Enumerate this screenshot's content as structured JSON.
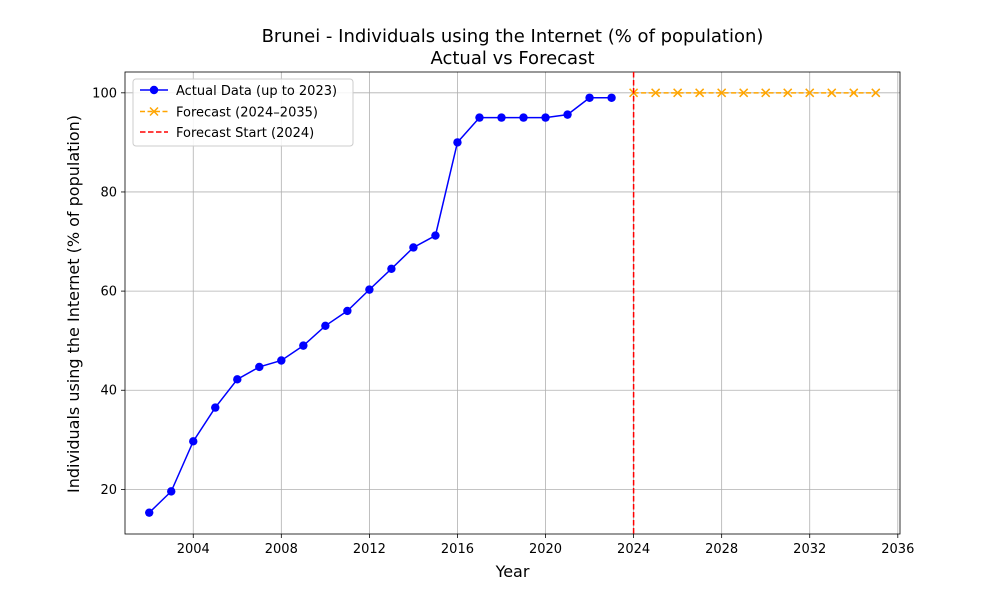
{
  "chart_data": {
    "type": "line",
    "title": "Brunei - Individuals using the Internet (% of population)",
    "subtitle": "Actual vs Forecast",
    "xlabel": "Year",
    "ylabel": "Individuals using the Internet (% of population)",
    "xlim": [
      2000.9,
      2036.1
    ],
    "ylim": [
      11.0,
      104.2
    ],
    "x_ticks": [
      2004,
      2008,
      2012,
      2016,
      2020,
      2024,
      2028,
      2032,
      2036
    ],
    "y_ticks": [
      20,
      40,
      60,
      80,
      100
    ],
    "grid": true,
    "legend_position": "top-left",
    "series": [
      {
        "name": "Actual Data (up to 2023)",
        "color": "#0000ff",
        "marker": "circle",
        "line_style": "solid",
        "x": [
          2002,
          2003,
          2004,
          2005,
          2006,
          2007,
          2008,
          2009,
          2010,
          2011,
          2012,
          2013,
          2014,
          2015,
          2016,
          2017,
          2018,
          2019,
          2020,
          2021,
          2022,
          2023
        ],
        "values": [
          15.3,
          19.6,
          29.7,
          36.5,
          42.2,
          44.7,
          46.0,
          49.0,
          53.0,
          56.0,
          60.3,
          64.5,
          68.8,
          71.2,
          90.0,
          95.0,
          95.0,
          95.0,
          95.0,
          95.6,
          99.0,
          99.0
        ]
      },
      {
        "name": "Forecast (2024–2035)",
        "color": "#ffa500",
        "marker": "x",
        "line_style": "dashed",
        "x": [
          2024,
          2025,
          2026,
          2027,
          2028,
          2029,
          2030,
          2031,
          2032,
          2033,
          2034,
          2035
        ],
        "values": [
          100,
          100,
          100,
          100,
          100,
          100,
          100,
          100,
          100,
          100,
          100,
          100
        ]
      }
    ],
    "reference_lines": [
      {
        "name": "Forecast Start (2024)",
        "orientation": "vertical",
        "x": 2024,
        "color": "#ff0000",
        "line_style": "dashed"
      }
    ]
  }
}
